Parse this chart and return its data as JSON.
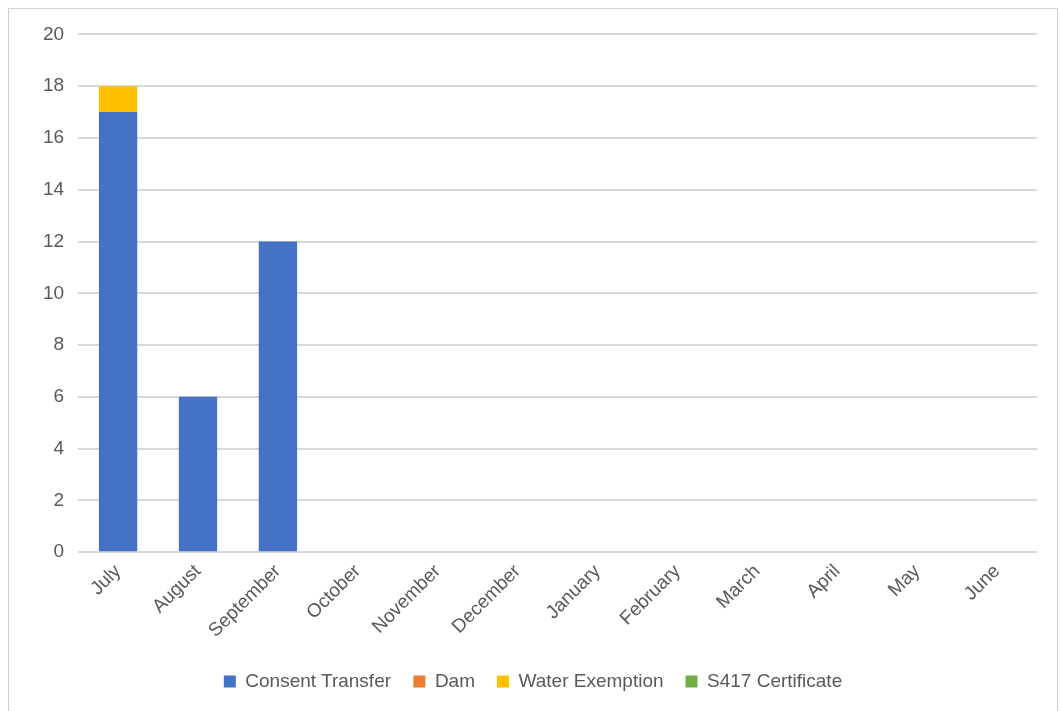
{
  "chart_data": {
    "type": "bar",
    "stacked": true,
    "categories": [
      "July",
      "August",
      "September",
      "October",
      "November",
      "December",
      "January",
      "February",
      "March",
      "April",
      "May",
      "June"
    ],
    "series": [
      {
        "name": "Consent Transfer",
        "color": "#4472c4",
        "values": [
          17,
          6,
          12,
          0,
          0,
          0,
          0,
          0,
          0,
          0,
          0,
          0
        ]
      },
      {
        "name": "Dam",
        "color": "#ed7d31",
        "values": [
          0,
          0,
          0,
          0,
          0,
          0,
          0,
          0,
          0,
          0,
          0,
          0
        ]
      },
      {
        "name": "Water Exemption",
        "color": "#ffc000",
        "values": [
          1,
          0,
          0,
          0,
          0,
          0,
          0,
          0,
          0,
          0,
          0,
          0
        ]
      },
      {
        "name": "S417 Certificate",
        "color": "#70ad47",
        "values": [
          0,
          0,
          0,
          0,
          0,
          0,
          0,
          0,
          0,
          0,
          0,
          0
        ]
      }
    ],
    "ylim": [
      0,
      20
    ],
    "yticks": [
      0,
      2,
      4,
      6,
      8,
      10,
      12,
      14,
      16,
      18,
      20
    ],
    "grid": "y",
    "legend": "bottom"
  }
}
